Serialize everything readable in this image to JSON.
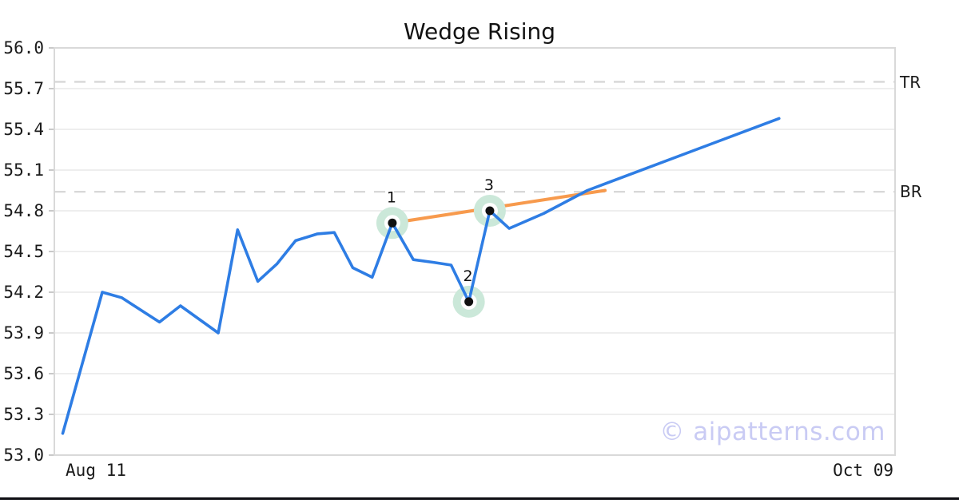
{
  "page": {
    "background": "#ffffff",
    "bottom_bar_color": "#0f0f14"
  },
  "chart_data": {
    "type": "line",
    "title": "Wedge Rising",
    "watermark": "© aipatterns.com",
    "grid": true,
    "legend": "none",
    "x_axis": {
      "tick_labels": [
        "Aug 11",
        "Oct 09"
      ]
    },
    "y_axis": {
      "min": 53.0,
      "max": 56.0,
      "ticks": [
        "56.0",
        "55.7",
        "55.4",
        "55.1",
        "54.8",
        "54.5",
        "54.2",
        "53.9",
        "53.6",
        "53.3",
        "53.0"
      ]
    },
    "series": [
      {
        "name": "price",
        "color": "#2e7de4",
        "points": [
          [
            0.01,
            53.16
          ],
          [
            0.057,
            54.2
          ],
          [
            0.08,
            54.16
          ],
          [
            0.125,
            53.98
          ],
          [
            0.15,
            54.1
          ],
          [
            0.195,
            53.9
          ],
          [
            0.218,
            54.66
          ],
          [
            0.242,
            54.28
          ],
          [
            0.265,
            54.41
          ],
          [
            0.287,
            54.58
          ],
          [
            0.313,
            54.63
          ],
          [
            0.333,
            54.64
          ],
          [
            0.355,
            54.38
          ],
          [
            0.378,
            54.31
          ],
          [
            0.402,
            54.71
          ],
          [
            0.427,
            54.44
          ],
          [
            0.451,
            54.42
          ],
          [
            0.472,
            54.4
          ],
          [
            0.493,
            54.13
          ],
          [
            0.518,
            54.8
          ],
          [
            0.541,
            54.67
          ],
          [
            0.582,
            54.78
          ],
          [
            0.634,
            54.95
          ],
          [
            0.862,
            55.48
          ]
        ]
      }
    ],
    "trend_line": {
      "name": "wedge-trendline",
      "color": "#f79a4d",
      "from": [
        0.402,
        54.71
      ],
      "to": [
        0.655,
        54.95
      ]
    },
    "levels": [
      {
        "label": "TR",
        "value": 55.75,
        "style": "dashed",
        "color": "#d5d5d5"
      },
      {
        "label": "BR",
        "value": 54.94,
        "style": "dashed",
        "color": "#d5d5d5"
      }
    ],
    "markers": [
      {
        "label": "1",
        "x": 0.402,
        "y": 54.71
      },
      {
        "label": "2",
        "x": 0.493,
        "y": 54.13
      },
      {
        "label": "3",
        "x": 0.518,
        "y": 54.8
      }
    ],
    "colors": {
      "grid": "#e8e8e8",
      "border": "#d9d9d9",
      "tick": "#c9c9c9",
      "marker_halo": "#cbe8d9",
      "marker_ring": "#ffffff",
      "marker_dot": "#111111",
      "text": "#111111",
      "watermark": "#c9cbf4"
    }
  }
}
